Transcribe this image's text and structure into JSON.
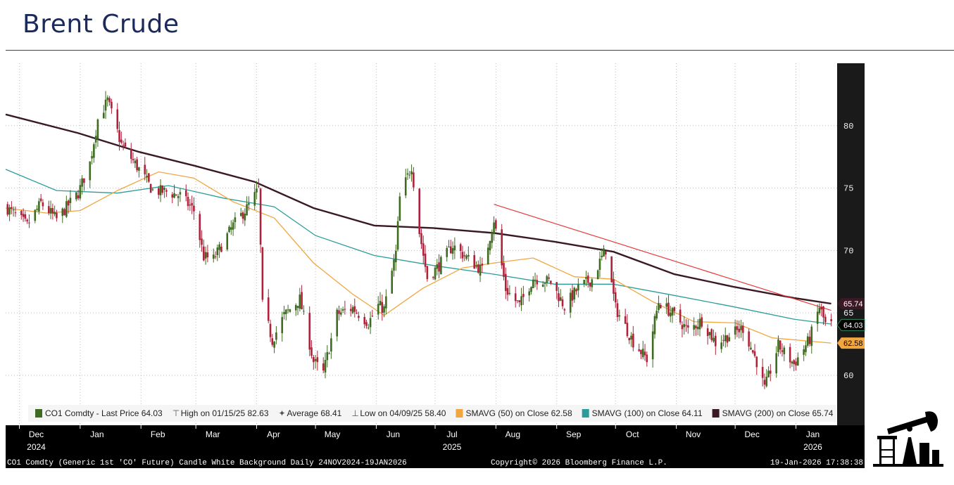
{
  "header": {
    "title": "Brent Crude"
  },
  "chart_data": {
    "type": "candlestick",
    "ylim": [
      56,
      85
    ],
    "y_ticks": [
      60,
      65,
      70,
      75,
      80
    ],
    "grid": true,
    "months": [
      {
        "label": "Dec",
        "date": "2024-12-01"
      },
      {
        "label": "Jan",
        "date": "2025-01-01"
      },
      {
        "label": "Feb",
        "date": "2025-02-01"
      },
      {
        "label": "Mar",
        "date": "2025-03-01"
      },
      {
        "label": "Apr",
        "date": "2025-04-01"
      },
      {
        "label": "May",
        "date": "2025-05-01"
      },
      {
        "label": "Jun",
        "date": "2025-06-01"
      },
      {
        "label": "Jul",
        "date": "2025-07-01"
      },
      {
        "label": "Aug",
        "date": "2025-08-01"
      },
      {
        "label": "Sep",
        "date": "2025-09-01"
      },
      {
        "label": "Oct",
        "date": "2025-10-01"
      },
      {
        "label": "Nov",
        "date": "2025-11-01"
      },
      {
        "label": "Dec",
        "date": "2025-12-01"
      },
      {
        "label": "Jan",
        "date": "2026-01-01"
      }
    ],
    "years": [
      {
        "label": "2024",
        "date": "2024-12-01"
      },
      {
        "label": "2025",
        "date": "2025-07-01"
      },
      {
        "label": "2026",
        "date": "2026-01-01"
      }
    ],
    "price_path": [
      [
        "2024-11-24",
        73.5
      ],
      [
        "2024-12-05",
        72.0
      ],
      [
        "2024-12-12",
        73.8
      ],
      [
        "2024-12-20",
        72.5
      ],
      [
        "2024-12-31",
        74.6
      ],
      [
        "2025-01-06",
        77.0
      ],
      [
        "2025-01-10",
        80.5
      ],
      [
        "2025-01-15",
        82.0
      ],
      [
        "2025-01-22",
        78.5
      ],
      [
        "2025-01-31",
        76.5
      ],
      [
        "2025-02-07",
        74.8
      ],
      [
        "2025-02-14",
        74.7
      ],
      [
        "2025-02-21",
        74.4
      ],
      [
        "2025-02-28",
        73.2
      ],
      [
        "2025-03-05",
        69.5
      ],
      [
        "2025-03-10",
        69.3
      ],
      [
        "2025-03-20",
        72.0
      ],
      [
        "2025-03-28",
        73.6
      ],
      [
        "2025-04-02",
        74.9
      ],
      [
        "2025-04-04",
        65.6
      ],
      [
        "2025-04-09",
        62.8
      ],
      [
        "2025-04-15",
        64.8
      ],
      [
        "2025-04-23",
        66.1
      ],
      [
        "2025-04-30",
        61.1
      ],
      [
        "2025-05-05",
        60.2
      ],
      [
        "2025-05-12",
        64.9
      ],
      [
        "2025-05-20",
        65.4
      ],
      [
        "2025-05-28",
        64.2
      ],
      [
        "2025-06-02",
        65.6
      ],
      [
        "2025-06-05",
        65.3
      ],
      [
        "2025-06-11",
        69.8
      ],
      [
        "2025-06-13",
        74.2
      ],
      [
        "2025-06-19",
        76.8
      ],
      [
        "2025-06-23",
        71.5
      ],
      [
        "2025-06-27",
        67.8
      ],
      [
        "2025-07-03",
        68.8
      ],
      [
        "2025-07-10",
        70.4
      ],
      [
        "2025-07-18",
        69.3
      ],
      [
        "2025-07-25",
        68.4
      ],
      [
        "2025-07-31",
        72.5
      ],
      [
        "2025-08-06",
        66.9
      ],
      [
        "2025-08-13",
        65.6
      ],
      [
        "2025-08-20",
        67.8
      ],
      [
        "2025-08-29",
        67.5
      ],
      [
        "2025-09-05",
        65.5
      ],
      [
        "2025-09-12",
        67.0
      ],
      [
        "2025-09-19",
        67.7
      ],
      [
        "2025-09-26",
        70.1
      ],
      [
        "2025-10-01",
        65.4
      ],
      [
        "2025-10-10",
        62.7
      ],
      [
        "2025-10-17",
        61.3
      ],
      [
        "2025-10-23",
        65.9
      ],
      [
        "2025-10-31",
        64.8
      ],
      [
        "2025-11-07",
        63.6
      ],
      [
        "2025-11-14",
        64.4
      ],
      [
        "2025-11-21",
        62.6
      ],
      [
        "2025-11-28",
        63.2
      ],
      [
        "2025-12-05",
        63.8
      ],
      [
        "2025-12-12",
        61.1
      ],
      [
        "2025-12-16",
        58.9
      ],
      [
        "2025-12-23",
        62.4
      ],
      [
        "2025-12-31",
        60.9
      ],
      [
        "2026-01-08",
        62.9
      ],
      [
        "2026-01-13",
        65.5
      ],
      [
        "2026-01-16",
        64.1
      ],
      [
        "2026-01-19",
        64.03
      ]
    ],
    "sma50_path": [
      [
        "2024-11-24",
        73.4
      ],
      [
        "2024-12-15",
        73.0
      ],
      [
        "2025-01-01",
        73.2
      ],
      [
        "2025-01-20",
        74.8
      ],
      [
        "2025-02-10",
        76.3
      ],
      [
        "2025-02-28",
        75.8
      ],
      [
        "2025-03-20",
        73.9
      ],
      [
        "2025-04-10",
        72.6
      ],
      [
        "2025-04-30",
        69.0
      ],
      [
        "2025-05-20",
        66.5
      ],
      [
        "2025-06-05",
        64.8
      ],
      [
        "2025-06-25",
        67.0
      ],
      [
        "2025-07-15",
        68.6
      ],
      [
        "2025-07-31",
        69.0
      ],
      [
        "2025-08-20",
        69.4
      ],
      [
        "2025-09-10",
        67.9
      ],
      [
        "2025-09-30",
        67.7
      ],
      [
        "2025-10-20",
        65.9
      ],
      [
        "2025-11-10",
        64.3
      ],
      [
        "2025-12-01",
        64.2
      ],
      [
        "2025-12-20",
        63.0
      ],
      [
        "2026-01-19",
        62.58
      ]
    ],
    "sma100_path": [
      [
        "2024-11-24",
        76.5
      ],
      [
        "2024-12-20",
        74.8
      ],
      [
        "2025-01-20",
        74.6
      ],
      [
        "2025-02-15",
        75.2
      ],
      [
        "2025-03-15",
        74.2
      ],
      [
        "2025-04-10",
        73.5
      ],
      [
        "2025-05-01",
        71.2
      ],
      [
        "2025-05-31",
        69.6
      ],
      [
        "2025-06-30",
        68.8
      ],
      [
        "2025-07-31",
        68.1
      ],
      [
        "2025-08-31",
        67.3
      ],
      [
        "2025-09-30",
        67.3
      ],
      [
        "2025-10-31",
        66.4
      ],
      [
        "2025-11-30",
        65.5
      ],
      [
        "2025-12-31",
        64.5
      ],
      [
        "2026-01-19",
        64.11
      ]
    ],
    "sma200_path": [
      [
        "2024-11-24",
        80.9
      ],
      [
        "2024-12-31",
        79.4
      ],
      [
        "2025-01-31",
        77.9
      ],
      [
        "2025-02-28",
        76.8
      ],
      [
        "2025-03-31",
        75.5
      ],
      [
        "2025-04-30",
        73.4
      ],
      [
        "2025-05-31",
        72.0
      ],
      [
        "2025-06-30",
        71.8
      ],
      [
        "2025-07-31",
        71.4
      ],
      [
        "2025-08-31",
        70.7
      ],
      [
        "2025-09-30",
        69.9
      ],
      [
        "2025-10-31",
        68.1
      ],
      [
        "2025-11-30",
        67.1
      ],
      [
        "2025-12-31",
        66.2
      ],
      [
        "2026-01-19",
        65.74
      ]
    ],
    "trendline": [
      [
        "2025-07-31",
        73.7
      ],
      [
        "2026-01-19",
        65.2
      ]
    ],
    "price_tags": [
      {
        "value": 65.74,
        "text": "65.74",
        "bg": "#3b1826",
        "fg": "#ffffff"
      },
      {
        "value": 64.03,
        "text": "64.03",
        "bg": "#000000",
        "fg": "#ffffff",
        "border": "#2e8b57"
      },
      {
        "value": 62.58,
        "text": "62.58",
        "bg": "#f2a640",
        "fg": "#000000"
      }
    ],
    "legend": [
      {
        "marker": "candle-icon",
        "color": "#3d6b1f",
        "text": "CO1 Comdty - Last Price 64.03"
      },
      {
        "marker": "high-icon",
        "color": "#555555",
        "text": "High on 01/15/25 82.63"
      },
      {
        "marker": "average-icon",
        "color": "#555555",
        "text": "Average 68.41"
      },
      {
        "marker": "low-icon",
        "color": "#555555",
        "text": "Low on 04/09/25 58.40"
      },
      {
        "marker": "swatch",
        "color": "#f2a640",
        "text": "SMAVG (50)  on Close 62.58"
      },
      {
        "marker": "swatch",
        "color": "#2a9d9a",
        "text": "SMAVG (100)  on Close 64.11"
      },
      {
        "marker": "swatch",
        "color": "#3b1826",
        "text": "SMAVG (200)  on Close 65.74"
      }
    ],
    "colors": {
      "up": "#3d6b1f",
      "down": "#b0213a",
      "sma50": "#f2a640",
      "sma100": "#2a9d9a",
      "sma200": "#3b1826",
      "trend": "#e83a3a"
    }
  },
  "footer": {
    "left": "CO1 Comdty (Generic 1st 'CO' Future) Candle White Background Daily 24NOV2024-19JAN2026",
    "center": "Copyright© 2026 Bloomberg Finance L.P.",
    "right": "19-Jan-2026 17:38:38"
  },
  "logo": {
    "icon": "oil-pump-icon",
    "color": "#000000"
  }
}
